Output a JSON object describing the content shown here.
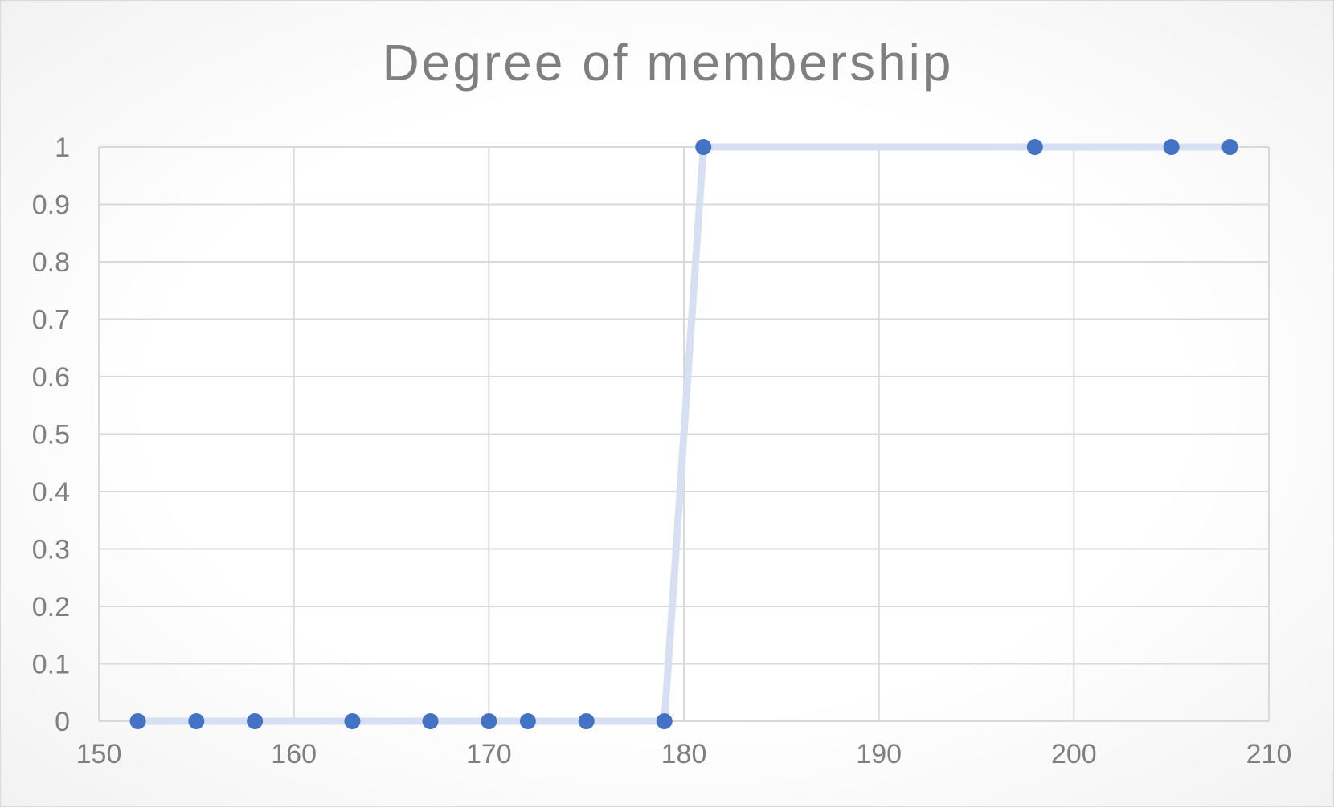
{
  "chart_data": {
    "type": "scatter",
    "title": "Degree of membership",
    "xlabel": "",
    "ylabel": "",
    "xlim": [
      150,
      210
    ],
    "ylim": [
      0,
      1
    ],
    "x_ticks": [
      150,
      160,
      170,
      180,
      190,
      200,
      210
    ],
    "y_ticks": [
      0,
      0.1,
      0.2,
      0.3,
      0.4,
      0.5,
      0.6,
      0.7,
      0.8,
      0.9,
      1
    ],
    "grid": true,
    "legend": "none",
    "series": [
      {
        "x": [
          152,
          155,
          158,
          163,
          167,
          170,
          172,
          175,
          179,
          181,
          198,
          205,
          208
        ],
        "y": [
          0,
          0,
          0,
          0,
          0,
          0,
          0,
          0,
          0,
          1,
          1,
          1,
          1
        ],
        "marker_color": "#4472c4",
        "line_color": "#d6e0f2"
      }
    ]
  }
}
